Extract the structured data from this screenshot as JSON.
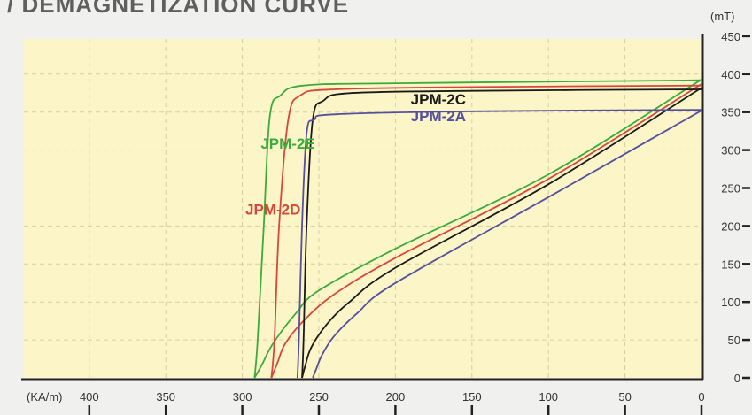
{
  "chart_data": {
    "type": "line",
    "title": "DEMAGNETIZATION CURVE",
    "title_prefix": "/",
    "xlabel": "(KA/m)",
    "ylabel": "(mT)",
    "xlim": [
      450,
      0
    ],
    "ylim": [
      0,
      450
    ],
    "x_reversed": true,
    "x_ticks": [
      400,
      350,
      300,
      250,
      200,
      150,
      100,
      50,
      0
    ],
    "y_ticks": [
      0,
      50,
      100,
      150,
      200,
      250,
      300,
      350,
      400,
      450
    ],
    "grid": true,
    "legend": "inline labels",
    "background_color": "#fbf5c8",
    "series": [
      {
        "name": "JPM-2E",
        "color": "#3cab3c",
        "label_at": [
          288,
          302
        ],
        "B_curve": [
          [
            0,
            392
          ],
          [
            200,
            388
          ],
          [
            260,
            385
          ],
          [
            275,
            372
          ],
          [
            282,
            345
          ],
          [
            286,
            200
          ],
          [
            290,
            50
          ],
          [
            292,
            0
          ]
        ],
        "J_curve": [
          [
            0,
            393
          ],
          [
            100,
            268
          ],
          [
            200,
            170
          ],
          [
            250,
            115
          ],
          [
            265,
            85
          ],
          [
            280,
            45
          ],
          [
            287,
            18
          ],
          [
            292,
            0
          ]
        ]
      },
      {
        "name": "JPM-2D",
        "color": "#d9473a",
        "label_at": [
          298,
          215
        ],
        "B_curve": [
          [
            0,
            385
          ],
          [
            150,
            383
          ],
          [
            240,
            380
          ],
          [
            262,
            372
          ],
          [
            270,
            340
          ],
          [
            276,
            200
          ],
          [
            279,
            50
          ],
          [
            281,
            0
          ]
        ],
        "J_curve": [
          [
            0,
            387
          ],
          [
            100,
            262
          ],
          [
            200,
            158
          ],
          [
            240,
            110
          ],
          [
            260,
            75
          ],
          [
            272,
            45
          ],
          [
            277,
            20
          ],
          [
            281,
            0
          ]
        ]
      },
      {
        "name": "JPM-2C",
        "color": "#1a1a1a",
        "label_at": [
          190,
          360
        ],
        "B_curve": [
          [
            0,
            380
          ],
          [
            150,
            378
          ],
          [
            230,
            375
          ],
          [
            247,
            365
          ],
          [
            254,
            340
          ],
          [
            258,
            200
          ],
          [
            260,
            50
          ],
          [
            261,
            0
          ]
        ],
        "J_curve": [
          [
            0,
            382
          ],
          [
            100,
            255
          ],
          [
            200,
            145
          ],
          [
            230,
            100
          ],
          [
            245,
            70
          ],
          [
            255,
            40
          ],
          [
            259,
            15
          ],
          [
            261,
            0
          ]
        ]
      },
      {
        "name": "JPM-2A",
        "color": "#55509e",
        "label_at": [
          190,
          338
        ],
        "B_curve": [
          [
            0,
            353
          ],
          [
            150,
            351
          ],
          [
            240,
            347
          ],
          [
            253,
            340
          ],
          [
            258,
            322
          ],
          [
            261,
            200
          ],
          [
            263,
            50
          ],
          [
            264,
            0
          ]
        ],
        "J_curve": [
          [
            0,
            352
          ],
          [
            100,
            238
          ],
          [
            200,
            125
          ],
          [
            225,
            85
          ],
          [
            240,
            55
          ],
          [
            248,
            30
          ],
          [
            252,
            10
          ],
          [
            254,
            0
          ]
        ]
      }
    ]
  }
}
